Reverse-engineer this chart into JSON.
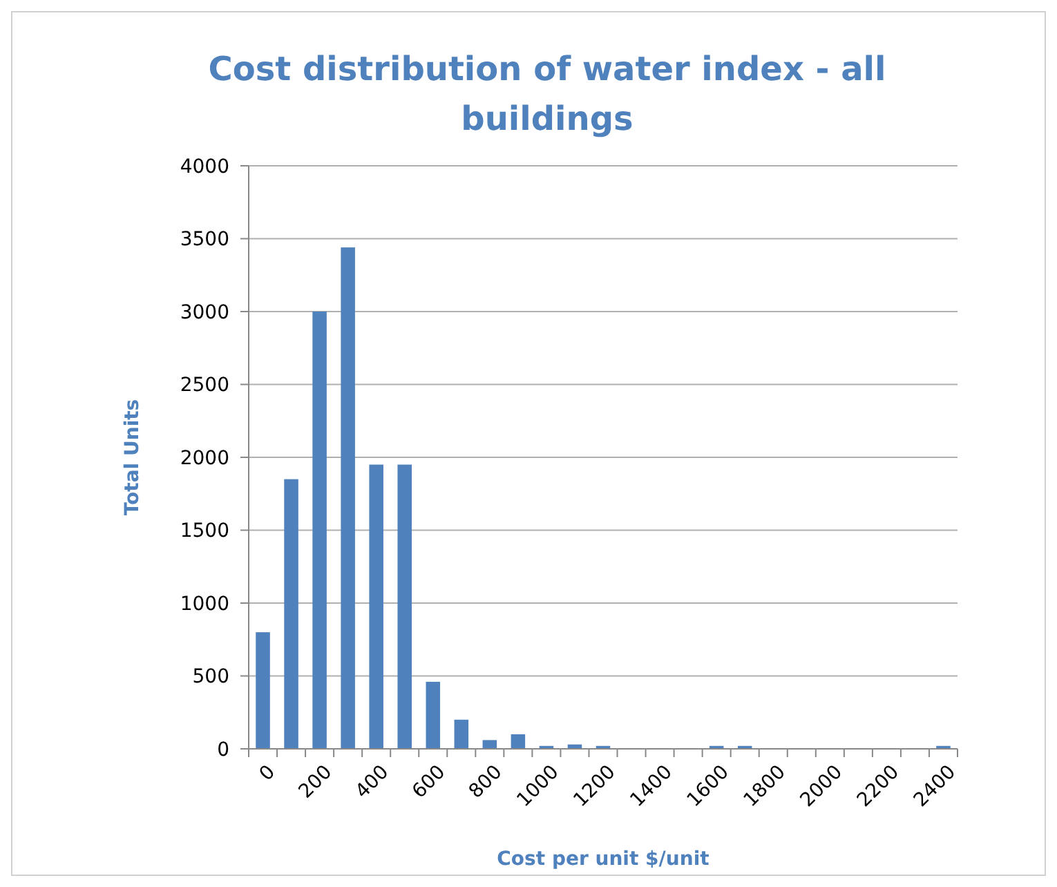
{
  "chart_data": {
    "type": "bar",
    "title": "Cost distribution  of water index - all buildings",
    "xlabel": "Cost per unit $/unit",
    "ylabel": "Total Units",
    "categories": [
      "0",
      null,
      "200",
      null,
      "400",
      null,
      "600",
      null,
      "800",
      null,
      "1000",
      null,
      "1200",
      null,
      "1400",
      null,
      "1600",
      null,
      "1800",
      null,
      "2000",
      null,
      "2200",
      null,
      "2400"
    ],
    "values": [
      800,
      1850,
      3000,
      3440,
      1950,
      1950,
      460,
      200,
      60,
      100,
      20,
      30,
      20,
      0,
      0,
      0,
      20,
      20,
      0,
      0,
      0,
      0,
      0,
      0,
      20
    ],
    "color": "#4f81bd",
    "ylim": [
      0,
      4000
    ],
    "yticks": [
      0,
      500,
      1000,
      1500,
      2000,
      2500,
      3000,
      3500,
      4000
    ],
    "grid": "y"
  }
}
